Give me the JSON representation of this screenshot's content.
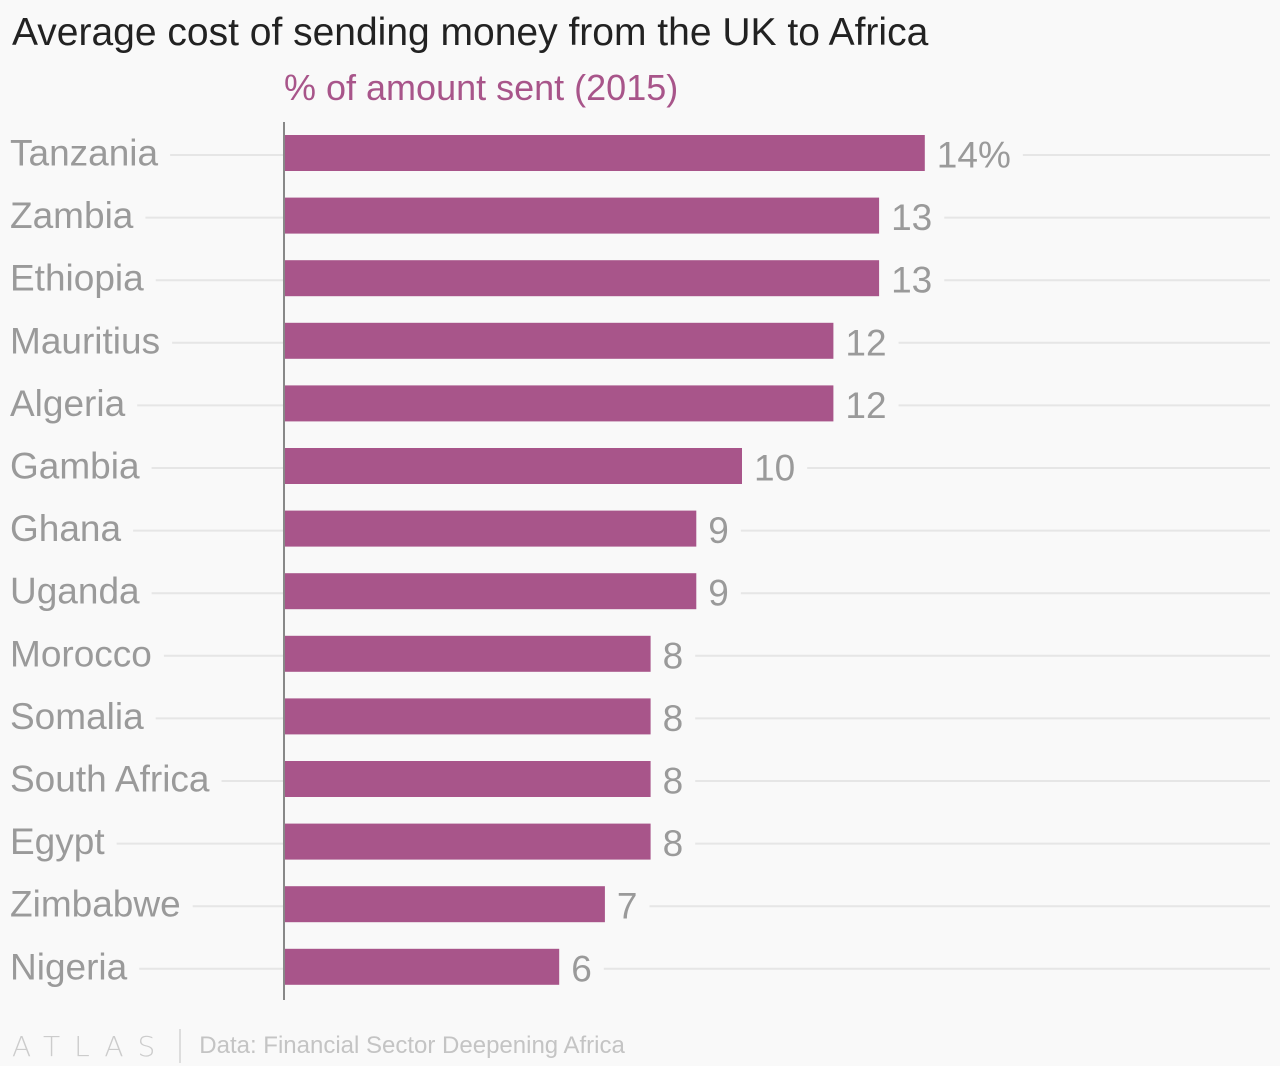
{
  "title": "Average cost of sending money from the UK to Africa",
  "subtitle": "% of amount sent (2015)",
  "footer": {
    "logo": "ATLAS",
    "source": "Data: Financial Sector Deepening Africa"
  },
  "colors": {
    "bar": "#a8558a",
    "subtitle": "#a8558a",
    "label": "#9a9a9a",
    "gridline": "#e6e6e6",
    "axis": "#888888"
  },
  "chart_data": {
    "type": "bar",
    "orientation": "horizontal",
    "title": "Average cost of sending money from the UK to Africa",
    "subtitle": "% of amount sent (2015)",
    "categories": [
      "Tanzania",
      "Zambia",
      "Ethiopia",
      "Mauritius",
      "Algeria",
      "Gambia",
      "Ghana",
      "Uganda",
      "Morocco",
      "Somalia",
      "South Africa",
      "Egypt",
      "Zimbabwe",
      "Nigeria"
    ],
    "values": [
      14,
      13,
      13,
      12,
      12,
      10,
      9,
      9,
      8,
      8,
      8,
      8,
      7,
      6
    ],
    "value_labels": [
      "14%",
      "13",
      "13",
      "12",
      "12",
      "10",
      "9",
      "9",
      "8",
      "8",
      "8",
      "8",
      "7",
      "6"
    ],
    "xlim": [
      0,
      20
    ],
    "grid": true,
    "legend": "none"
  }
}
